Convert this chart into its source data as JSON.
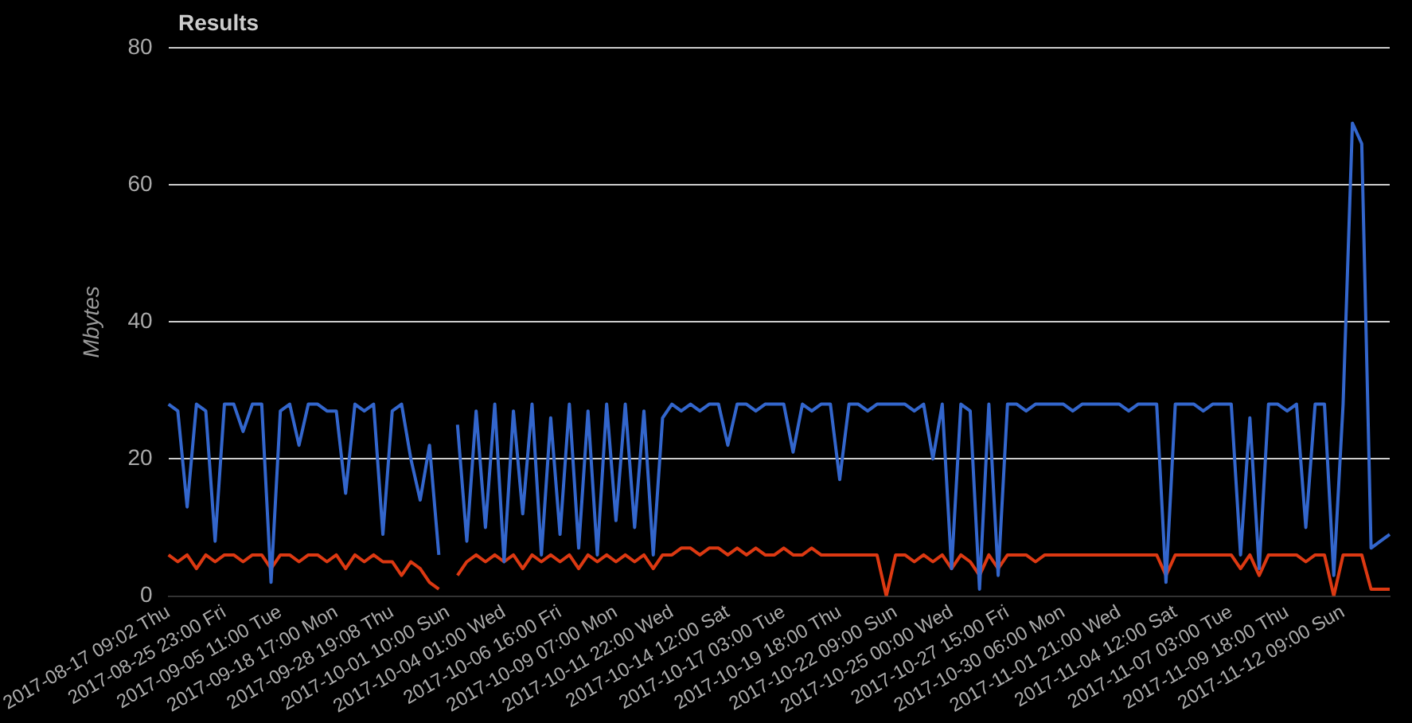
{
  "chart_data": {
    "type": "line",
    "title": "Results",
    "ylabel": "Mbytes",
    "categories": [
      "2017-08-17 09:02 Thu",
      null,
      null,
      null,
      null,
      null,
      "2017-08-25 23:00 Fri",
      null,
      null,
      null,
      null,
      null,
      "2017-09-05 11:00 Tue",
      null,
      null,
      null,
      null,
      null,
      "2017-09-18 17:00 Mon",
      null,
      null,
      null,
      null,
      null,
      "2017-09-28 19:08 Thu",
      null,
      null,
      null,
      null,
      null,
      "2017-10-01 10:00 Sun",
      null,
      null,
      null,
      null,
      null,
      "2017-10-04 01:00 Wed",
      null,
      null,
      null,
      null,
      null,
      "2017-10-06 16:00 Fri",
      null,
      null,
      null,
      null,
      null,
      "2017-10-09 07:00 Mon",
      null,
      null,
      null,
      null,
      null,
      "2017-10-11 22:00 Wed",
      null,
      null,
      null,
      null,
      null,
      "2017-10-14 12:00 Sat",
      null,
      null,
      null,
      null,
      null,
      "2017-10-17 03:00 Tue",
      null,
      null,
      null,
      null,
      null,
      "2017-10-19 18:00 Thu",
      null,
      null,
      null,
      null,
      null,
      "2017-10-22 09:00 Sun",
      null,
      null,
      null,
      null,
      null,
      "2017-10-25 00:00 Wed",
      null,
      null,
      null,
      null,
      null,
      "2017-10-27 15:00 Fri",
      null,
      null,
      null,
      null,
      null,
      "2017-10-30 06:00 Mon",
      null,
      null,
      null,
      null,
      null,
      "2017-11-01 21:00 Wed",
      null,
      null,
      null,
      null,
      null,
      "2017-11-04 12:00 Sat",
      null,
      null,
      null,
      null,
      null,
      "2017-11-07 03:00 Tue",
      null,
      null,
      null,
      null,
      null,
      "2017-11-09 18:00 Thu",
      null,
      null,
      null,
      null,
      null,
      "2017-11-12 09:00 Sun",
      null,
      null,
      null,
      null,
      null
    ],
    "series": [
      {
        "color": "#3366cc",
        "values": [
          28,
          27,
          13,
          28,
          27,
          8,
          28,
          28,
          24,
          28,
          28,
          2,
          27,
          28,
          22,
          28,
          28,
          27,
          27,
          15,
          28,
          27,
          28,
          9,
          27,
          28,
          20,
          14,
          22,
          6,
          null,
          25,
          8,
          27,
          10,
          28,
          5,
          27,
          12,
          28,
          6,
          26,
          9,
          28,
          7,
          27,
          6,
          28,
          11,
          28,
          10,
          27,
          6,
          26,
          28,
          27,
          28,
          27,
          28,
          28,
          22,
          28,
          28,
          27,
          28,
          28,
          28,
          21,
          28,
          27,
          28,
          28,
          17,
          28,
          28,
          27,
          28,
          28,
          28,
          28,
          27,
          28,
          20,
          28,
          4,
          28,
          27,
          1,
          28,
          3,
          28,
          28,
          27,
          28,
          28,
          28,
          28,
          27,
          28,
          28,
          28,
          28,
          28,
          27,
          28,
          28,
          28,
          2,
          28,
          28,
          28,
          27,
          28,
          28,
          28,
          6,
          26,
          4,
          28,
          28,
          27,
          28,
          10,
          28,
          28,
          3,
          28,
          69,
          66,
          7,
          8,
          9
        ]
      },
      {
        "color": "#dc3912",
        "values": [
          6,
          5,
          6,
          4,
          6,
          5,
          6,
          6,
          5,
          6,
          6,
          4,
          6,
          6,
          5,
          6,
          6,
          5,
          6,
          4,
          6,
          5,
          6,
          5,
          5,
          3,
          5,
          4,
          2,
          1,
          null,
          3,
          5,
          6,
          5,
          6,
          5,
          6,
          4,
          6,
          5,
          6,
          5,
          6,
          4,
          6,
          5,
          6,
          5,
          6,
          5,
          6,
          4,
          6,
          6,
          7,
          7,
          6,
          7,
          7,
          6,
          7,
          6,
          7,
          6,
          6,
          7,
          6,
          6,
          7,
          6,
          6,
          6,
          6,
          6,
          6,
          6,
          0,
          6,
          6,
          5,
          6,
          5,
          6,
          4,
          6,
          5,
          3,
          6,
          4,
          6,
          6,
          6,
          5,
          6,
          6,
          6,
          6,
          6,
          6,
          6,
          6,
          6,
          6,
          6,
          6,
          6,
          3,
          6,
          6,
          6,
          6,
          6,
          6,
          6,
          4,
          6,
          3,
          6,
          6,
          6,
          6,
          5,
          6,
          6,
          0,
          6,
          6,
          6,
          1,
          1,
          1
        ]
      }
    ],
    "ylim": [
      0,
      80
    ],
    "yticks": [
      0,
      20,
      40,
      60,
      80
    ],
    "grid": "y",
    "legend": false,
    "marker": "none"
  }
}
